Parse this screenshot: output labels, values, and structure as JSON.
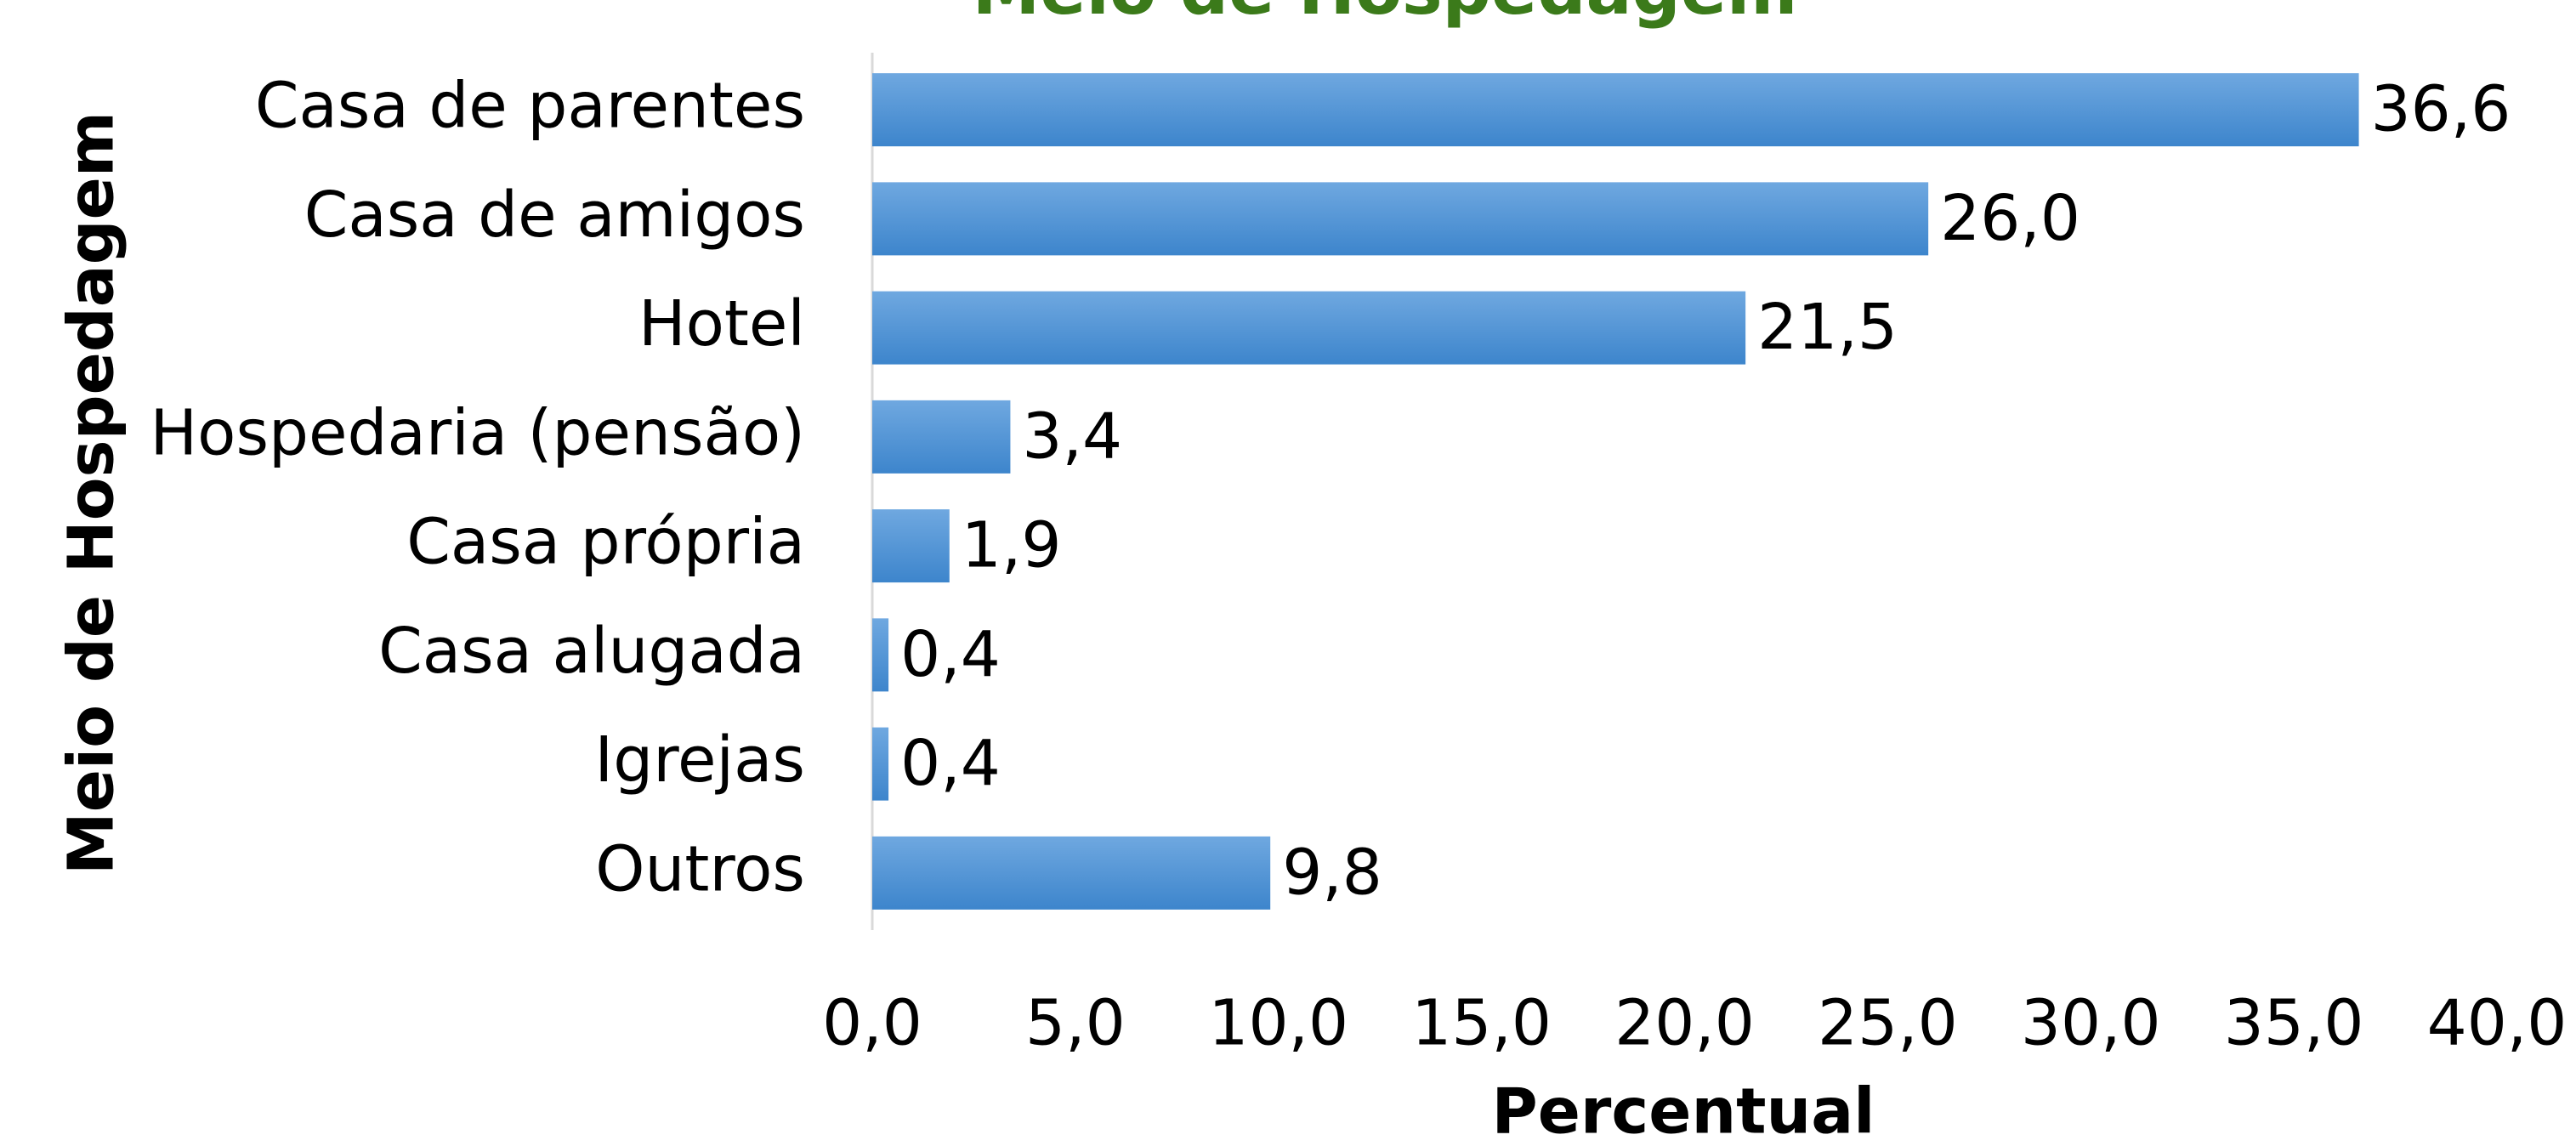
{
  "chart_data": {
    "type": "bar",
    "orientation": "horizontal",
    "title": "Meio de Hospedagem",
    "x_label": "Percentual",
    "y_label": "Meio de Hospedagem",
    "categories": [
      "Casa de parentes",
      "Casa de amigos",
      "Hotel",
      "Hospedaria (pensão)",
      "Casa própria",
      "Casa alugada",
      "Igrejas",
      "Outros"
    ],
    "values": [
      36.6,
      26.0,
      21.5,
      3.4,
      1.9,
      0.4,
      0.4,
      9.8
    ],
    "value_labels": [
      "36,6",
      "26,0",
      "21,5",
      "3,4",
      "1,9",
      "0,4",
      "0,4",
      "9,8"
    ],
    "color": "#4a8fd3",
    "xlim": [
      0,
      40
    ],
    "xticks": [
      {
        "value": 0,
        "label": "0,0"
      },
      {
        "value": 5,
        "label": "5,0"
      },
      {
        "value": 10,
        "label": "10,0"
      },
      {
        "value": 15,
        "label": "15,0"
      },
      {
        "value": 20,
        "label": "20,0"
      },
      {
        "value": 25,
        "label": "25,0"
      },
      {
        "value": 30,
        "label": "30,0"
      },
      {
        "value": 35,
        "label": "35,0"
      },
      {
        "value": 40,
        "label": "40,0"
      }
    ],
    "grid": false
  }
}
